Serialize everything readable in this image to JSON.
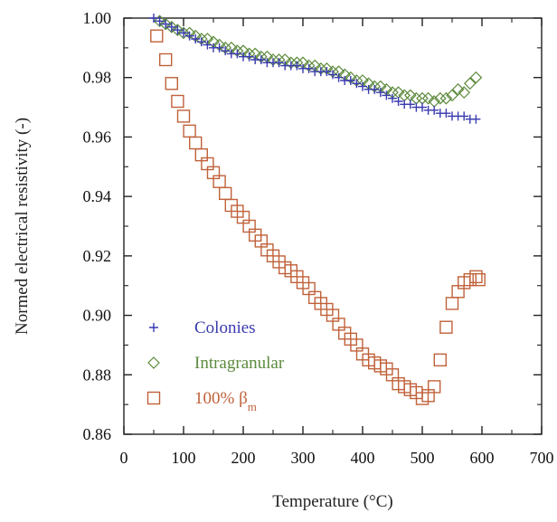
{
  "chart_data": {
    "type": "scatter",
    "xlabel": "Temperature (°C)",
    "ylabel": "Normed electrical resistivity (-)",
    "xlim": [
      0,
      700
    ],
    "ylim": [
      0.86,
      1.0
    ],
    "x_ticks": [
      0,
      100,
      200,
      300,
      400,
      500,
      600,
      700
    ],
    "x_tick_labels": [
      "0",
      "100",
      "200",
      "300",
      "400",
      "500",
      "600",
      "700"
    ],
    "y_ticks": [
      0.86,
      0.88,
      0.9,
      0.92,
      0.94,
      0.96,
      0.98,
      1.0
    ],
    "y_tick_labels": [
      "0.86",
      "0.88",
      "0.90",
      "0.92",
      "0.94",
      "0.96",
      "0.98",
      "1.00"
    ],
    "grid": false,
    "legend_position": "bottom-left",
    "series": [
      {
        "name": "Colonies",
        "marker": "plus",
        "color": "#3a3ab0",
        "x": [
          50,
          60,
          70,
          80,
          90,
          100,
          110,
          120,
          130,
          140,
          150,
          160,
          170,
          180,
          190,
          200,
          210,
          220,
          230,
          240,
          250,
          260,
          270,
          280,
          290,
          300,
          310,
          320,
          330,
          340,
          350,
          360,
          370,
          380,
          390,
          400,
          410,
          420,
          430,
          440,
          450,
          460,
          470,
          480,
          490,
          500,
          510,
          520,
          530,
          540,
          550,
          560,
          570,
          580,
          590
        ],
        "y": [
          1.0,
          0.999,
          0.998,
          0.997,
          0.996,
          0.995,
          0.994,
          0.993,
          0.992,
          0.991,
          0.99,
          0.99,
          0.989,
          0.988,
          0.988,
          0.987,
          0.987,
          0.986,
          0.986,
          0.985,
          0.985,
          0.985,
          0.984,
          0.984,
          0.984,
          0.983,
          0.983,
          0.982,
          0.982,
          0.982,
          0.981,
          0.98,
          0.979,
          0.979,
          0.978,
          0.977,
          0.976,
          0.976,
          0.975,
          0.974,
          0.973,
          0.972,
          0.971,
          0.971,
          0.97,
          0.97,
          0.969,
          0.969,
          0.968,
          0.968,
          0.967,
          0.967,
          0.967,
          0.966,
          0.966
        ]
      },
      {
        "name": "Intragranular",
        "marker": "diamond",
        "color": "#5c8a3c",
        "x": [
          60,
          70,
          80,
          90,
          100,
          110,
          120,
          130,
          140,
          150,
          160,
          170,
          180,
          190,
          200,
          210,
          220,
          230,
          240,
          250,
          260,
          270,
          280,
          290,
          300,
          310,
          320,
          330,
          340,
          350,
          360,
          370,
          380,
          390,
          400,
          410,
          420,
          430,
          440,
          450,
          460,
          470,
          480,
          490,
          500,
          510,
          520,
          530,
          540,
          550,
          560,
          570,
          580,
          590
        ],
        "y": [
          0.999,
          0.998,
          0.997,
          0.996,
          0.995,
          0.995,
          0.994,
          0.993,
          0.993,
          0.992,
          0.991,
          0.99,
          0.99,
          0.989,
          0.989,
          0.988,
          0.988,
          0.987,
          0.987,
          0.986,
          0.986,
          0.986,
          0.985,
          0.985,
          0.985,
          0.984,
          0.984,
          0.983,
          0.983,
          0.982,
          0.982,
          0.981,
          0.98,
          0.979,
          0.979,
          0.978,
          0.977,
          0.977,
          0.976,
          0.975,
          0.975,
          0.974,
          0.974,
          0.973,
          0.973,
          0.973,
          0.972,
          0.973,
          0.973,
          0.974,
          0.976,
          0.975,
          0.978,
          0.98
        ]
      },
      {
        "name": "100% βm",
        "marker": "square",
        "color": "#c0613a",
        "x": [
          55,
          70,
          80,
          90,
          100,
          110,
          120,
          130,
          140,
          150,
          160,
          170,
          180,
          190,
          200,
          210,
          220,
          230,
          240,
          250,
          260,
          270,
          280,
          290,
          300,
          310,
          320,
          330,
          340,
          350,
          360,
          370,
          380,
          390,
          400,
          410,
          420,
          430,
          440,
          450,
          460,
          470,
          480,
          490,
          500,
          510,
          520,
          530,
          540,
          550,
          560,
          570,
          580,
          590,
          595
        ],
        "y": [
          0.994,
          0.986,
          0.978,
          0.972,
          0.967,
          0.962,
          0.958,
          0.954,
          0.951,
          0.948,
          0.945,
          0.941,
          0.937,
          0.935,
          0.933,
          0.93,
          0.927,
          0.925,
          0.922,
          0.92,
          0.918,
          0.916,
          0.915,
          0.913,
          0.911,
          0.909,
          0.906,
          0.904,
          0.902,
          0.9,
          0.897,
          0.894,
          0.892,
          0.89,
          0.887,
          0.885,
          0.884,
          0.883,
          0.882,
          0.88,
          0.877,
          0.876,
          0.875,
          0.874,
          0.872,
          0.873,
          0.876,
          0.885,
          0.896,
          0.904,
          0.908,
          0.911,
          0.912,
          0.913,
          0.912
        ]
      }
    ],
    "legend": [
      {
        "label": "Colonies",
        "sub": ""
      },
      {
        "label": "Intragranular",
        "sub": ""
      },
      {
        "label": "100% β",
        "sub": "m"
      }
    ]
  }
}
